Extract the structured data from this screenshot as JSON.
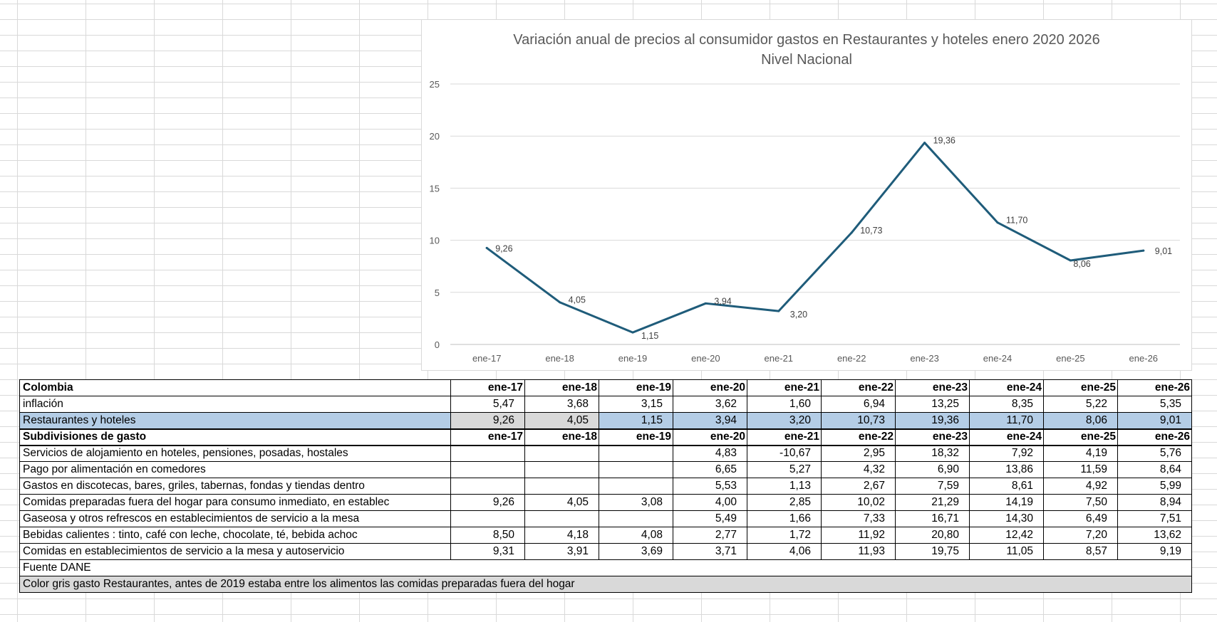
{
  "chart_data": {
    "type": "line",
    "title": "Variación anual de precios al consumidor gastos en Restaurantes y hoteles enero 2020 2026",
    "subtitle": "Nivel Nacional",
    "categories": [
      "ene-17",
      "ene-18",
      "ene-19",
      "ene-20",
      "ene-21",
      "ene-22",
      "ene-23",
      "ene-24",
      "ene-25",
      "ene-26"
    ],
    "values": [
      9.26,
      4.05,
      1.15,
      3.94,
      3.2,
      10.73,
      19.36,
      11.7,
      8.06,
      9.01
    ],
    "value_labels": [
      "9,26",
      "4,05",
      "1,15",
      "3,94",
      "3,20",
      "10,73",
      "19,36",
      "11,70",
      "8,06",
      "9,01"
    ],
    "yticks": [
      0,
      5,
      10,
      15,
      20,
      25
    ],
    "ylim": [
      0,
      25
    ],
    "grid": true,
    "line_color": "#1f5c7a",
    "xlabel": "",
    "ylabel": ""
  },
  "table": {
    "title_label": "Colombia",
    "years": [
      "ene-17",
      "ene-18",
      "ene-19",
      "ene-20",
      "ene-21",
      "ene-22",
      "ene-23",
      "ene-24",
      "ene-25",
      "ene-26"
    ],
    "inflation": {
      "label": "inflación",
      "values": [
        "5,47",
        "3,68",
        "3,15",
        "3,62",
        "1,60",
        "6,94",
        "13,25",
        "8,35",
        "5,22",
        "5,35"
      ]
    },
    "restaurants": {
      "label": "Restaurantes y hoteles",
      "values": [
        "9,26",
        "4,05",
        "1,15",
        "3,94",
        "3,20",
        "10,73",
        "19,36",
        "11,70",
        "8,06",
        "9,01"
      ]
    },
    "subdivisions_label": "Subdivisiones de gasto",
    "rows": [
      {
        "label": "Servicios de alojamiento en hoteles, pensiones, posadas, hostales",
        "values": [
          "",
          "",
          "",
          "4,83",
          "-10,67",
          "2,95",
          "18,32",
          "7,92",
          "4,19",
          "5,76"
        ]
      },
      {
        "label": " Pago por alimentación en comedores",
        "values": [
          "",
          "",
          "",
          "6,65",
          "5,27",
          "4,32",
          "6,90",
          "13,86",
          "11,59",
          "8,64"
        ]
      },
      {
        "label": "Gastos en discotecas, bares, griles, tabernas, fondas y tiendas dentro",
        "values": [
          "",
          "",
          "",
          "5,53",
          "1,13",
          "2,67",
          "7,59",
          "8,61",
          "4,92",
          "5,99"
        ]
      },
      {
        "label": " Comidas preparadas fuera del hogar para consumo inmediato, en establec",
        "values": [
          "9,26",
          "4,05",
          "3,08",
          "4,00",
          "2,85",
          "10,02",
          "21,29",
          "14,19",
          "7,50",
          "8,94"
        ]
      },
      {
        "label": " Gaseosa y otros refrescos  en establecimientos de servicio a la mesa",
        "values": [
          "",
          "",
          "",
          "5,49",
          "1,66",
          "7,33",
          "16,71",
          "14,30",
          "6,49",
          "7,51"
        ]
      },
      {
        "label": "Bebidas calientes : tinto, café con leche, chocolate, té, bebida achoc",
        "values": [
          "8,50",
          "4,18",
          "4,08",
          "2,77",
          "1,72",
          "11,92",
          "20,80",
          "12,42",
          "7,20",
          "13,62"
        ]
      },
      {
        "label": "Comidas en establecimientos de servicio a la mesa y autoservicio",
        "values": [
          "9,31",
          "3,91",
          "3,69",
          "3,71",
          "4,06",
          "11,93",
          "19,75",
          "11,05",
          "8,57",
          "9,19"
        ]
      }
    ],
    "source": "Fuente DANE",
    "note": "Color gris gasto Restaurantes, antes de 2019 estaba entre los alimentos las comidas preparadas fuera del hogar"
  }
}
